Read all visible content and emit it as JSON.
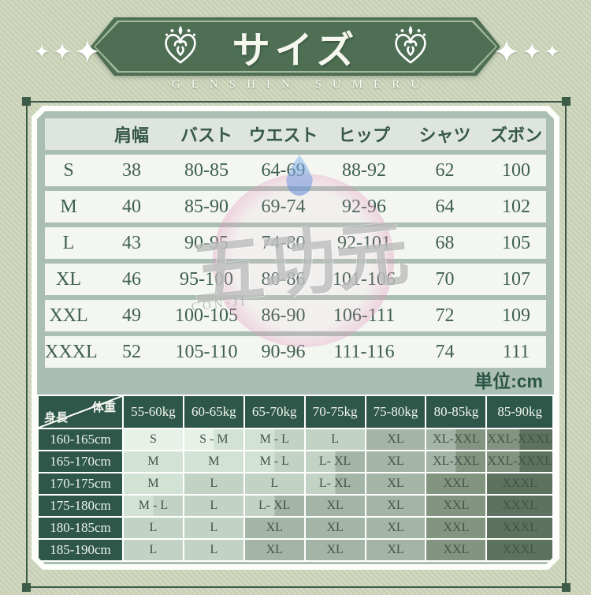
{
  "header": {
    "title": "サイズ",
    "subtitle": "GENSHIN SUMERU"
  },
  "unit_note": "単位:cm",
  "size_table": {
    "columns": [
      "",
      "肩幅",
      "バスト",
      "ウエスト",
      "ヒップ",
      "シャツ",
      "ズボン"
    ],
    "rows": [
      {
        "size": "S",
        "values": [
          "38",
          "80-85",
          "64-69",
          "88-92",
          "62",
          "100"
        ]
      },
      {
        "size": "M",
        "values": [
          "40",
          "85-90",
          "69-74",
          "92-96",
          "64",
          "102"
        ]
      },
      {
        "size": "L",
        "values": [
          "43",
          "90-95",
          "74-80",
          "92-101",
          "68",
          "105"
        ]
      },
      {
        "size": "XL",
        "values": [
          "46",
          "95-100",
          "80-86",
          "101-106",
          "70",
          "107"
        ]
      },
      {
        "size": "XXL",
        "values": [
          "49",
          "100-105",
          "86-90",
          "106-111",
          "72",
          "109"
        ]
      },
      {
        "size": "XXXL",
        "values": [
          "52",
          "105-110",
          "90-96",
          "111-116",
          "74",
          "111"
        ]
      }
    ]
  },
  "fit_table": {
    "corner": {
      "top": "体重",
      "bottom": "身長"
    },
    "weight_columns": [
      "55-60kg",
      "60-65kg",
      "65-70kg",
      "70-75kg",
      "75-80kg",
      "80-85kg",
      "85-90kg"
    ],
    "rows": [
      {
        "height": "160-165cm",
        "cells": [
          "S",
          "S - M",
          "M - L",
          "L",
          "XL",
          "XL-XXL",
          "XXL-XXXL"
        ]
      },
      {
        "height": "165-170cm",
        "cells": [
          "M",
          "M",
          "M - L",
          "L- XL",
          "XL",
          "XL-XXL",
          "XXL-XXXL"
        ]
      },
      {
        "height": "170-175cm",
        "cells": [
          "M",
          "L",
          "L",
          "L- XL",
          "XL",
          "XXL",
          "XXXL"
        ]
      },
      {
        "height": "175-180cm",
        "cells": [
          "M - L",
          "L",
          "L- XL",
          "XL",
          "XL",
          "XXL",
          "XXXL"
        ]
      },
      {
        "height": "180-185cm",
        "cells": [
          "L",
          "L",
          "XL",
          "XL",
          "XL",
          "XXL",
          "XXXL"
        ]
      },
      {
        "height": "185-190cm",
        "cells": [
          "L",
          "L",
          "XL",
          "XL",
          "XL",
          "XXL",
          "XXXL"
        ]
      }
    ]
  },
  "watermark": {
    "text": "五功元",
    "subtext": "CON·JI"
  },
  "colors": {
    "banner_green": "#4e6f53",
    "frame_green": "#3d5c47",
    "panel_bg": "#abbeb3",
    "table_head_bg": "#dee5de",
    "table_row_bg": "#f3f6f1",
    "dark_cell_green": "#2e574a",
    "size_scale": {
      "S": "#e7f1e8",
      "M": "#d2e2d5",
      "L": "#c2d3c5",
      "XL": "#a3b5a7",
      "XXL": "#82967f",
      "XXXL": "#5e7260"
    }
  }
}
